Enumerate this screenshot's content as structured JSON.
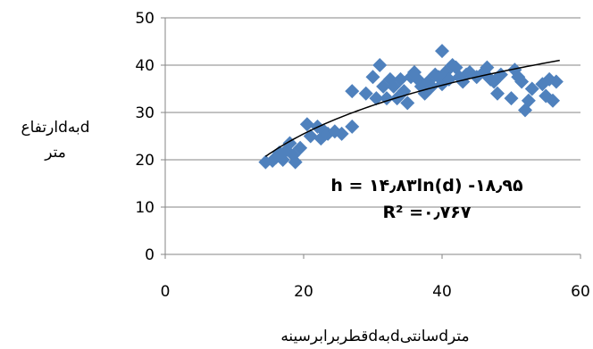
{
  "chart_data": {
    "type": "scatter",
    "title": "",
    "xlabel": "قطربرابرسینهdبهdسانتیdمتر",
    "ylabel_lines": [
      "ارتفاعdبهd",
      "متر"
    ],
    "xlim": [
      0,
      60
    ],
    "ylim": [
      0,
      50
    ],
    "xticks": [
      0,
      20,
      40,
      60
    ],
    "yticks": [
      0,
      10,
      20,
      30,
      40,
      50
    ],
    "xtick_labels": [
      "0",
      "20",
      "40",
      "60"
    ],
    "ytick_labels": [
      "0",
      "10",
      "20",
      "30",
      "40",
      "50"
    ],
    "grid": "horizontal",
    "marker_color": "#4F81BD",
    "trendline_color": "#000000",
    "trendline": {
      "type": "logarithmic",
      "a": 14.83,
      "b": -18.95,
      "x_range": [
        14.5,
        57
      ],
      "equation_label": "h = ۱۴٫۸۳ln(d) -۱۸٫۹۵",
      "r2_label": "R² =۰٫۷۶۷"
    },
    "points": [
      [
        14.5,
        19.5
      ],
      [
        15.5,
        19.8
      ],
      [
        16,
        20.5
      ],
      [
        16.5,
        21.5
      ],
      [
        17,
        20.0
      ],
      [
        17.5,
        22.0
      ],
      [
        18,
        23.5
      ],
      [
        18.5,
        21.0
      ],
      [
        18.8,
        19.5
      ],
      [
        19.5,
        22.5
      ],
      [
        20.5,
        27.5
      ],
      [
        21,
        25.0
      ],
      [
        22,
        27.0
      ],
      [
        22.5,
        24.5
      ],
      [
        23,
        26.0
      ],
      [
        23.5,
        25.5
      ],
      [
        24.5,
        26.0
      ],
      [
        25.5,
        25.5
      ],
      [
        27,
        27.0
      ],
      [
        27,
        34.5
      ],
      [
        29,
        34.0
      ],
      [
        30,
        37.5
      ],
      [
        30.5,
        33.0
      ],
      [
        31,
        40.0
      ],
      [
        31.5,
        35.5
      ],
      [
        32,
        33.0
      ],
      [
        32.5,
        37.0
      ],
      [
        33,
        35.5
      ],
      [
        33.5,
        33.0
      ],
      [
        34,
        37.0
      ],
      [
        34.5,
        34.5
      ],
      [
        35,
        32.0
      ],
      [
        35.5,
        37.5
      ],
      [
        36,
        38.5
      ],
      [
        36.5,
        37.0
      ],
      [
        37,
        35.5
      ],
      [
        37.5,
        34.0
      ],
      [
        38,
        36.5
      ],
      [
        38.5,
        35.5
      ],
      [
        39,
        38.0
      ],
      [
        39.5,
        37.5
      ],
      [
        40,
        43.0
      ],
      [
        40,
        36.0
      ],
      [
        40.5,
        38.5
      ],
      [
        41,
        37.0
      ],
      [
        41.5,
        40.0
      ],
      [
        42,
        39.5
      ],
      [
        42.5,
        37.5
      ],
      [
        43,
        36.5
      ],
      [
        43.5,
        38.0
      ],
      [
        44,
        38.5
      ],
      [
        45,
        37.5
      ],
      [
        46,
        38.5
      ],
      [
        46.5,
        39.5
      ],
      [
        47,
        37.0
      ],
      [
        47.5,
        36.5
      ],
      [
        48,
        34.0
      ],
      [
        48.5,
        38.0
      ],
      [
        50,
        33.0
      ],
      [
        50.5,
        39.0
      ],
      [
        51,
        37.5
      ],
      [
        51.5,
        36.5
      ],
      [
        52,
        30.5
      ],
      [
        52.5,
        32.5
      ],
      [
        53,
        35.0
      ],
      [
        54.5,
        36.0
      ],
      [
        55,
        33.5
      ],
      [
        55.5,
        37.0
      ],
      [
        56,
        32.5
      ],
      [
        56.5,
        36.5
      ]
    ]
  }
}
